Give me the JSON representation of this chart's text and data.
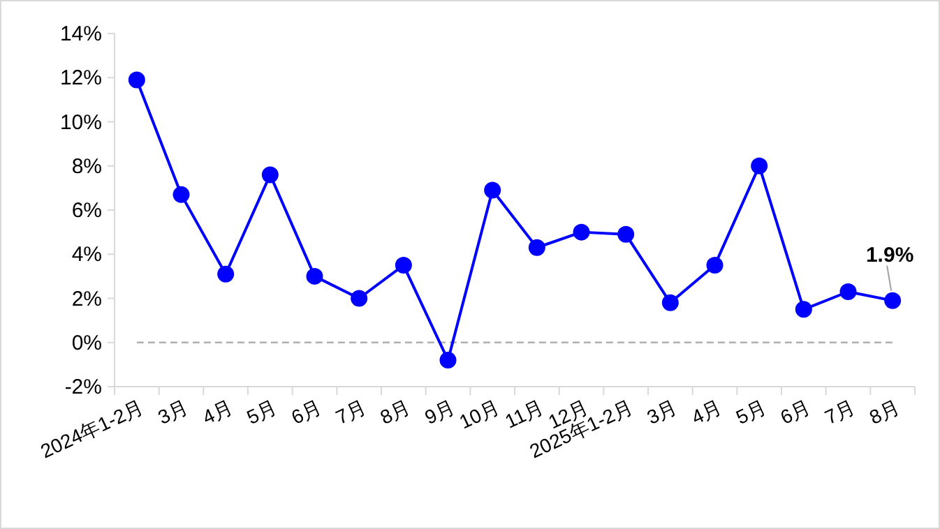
{
  "chart_data": {
    "type": "line",
    "categories": [
      "2024年1-2月",
      "3月",
      "4月",
      "5月",
      "6月",
      "7月",
      "8月",
      "9月",
      "10月",
      "11月",
      "12月",
      "2025年1-2月",
      "3月",
      "4月",
      "5月",
      "6月",
      "7月",
      "8月"
    ],
    "series": [
      {
        "color": "#0000ff",
        "values": [
          11.9,
          6.7,
          3.1,
          7.6,
          3.0,
          2.0,
          3.5,
          -0.8,
          6.9,
          4.3,
          5.0,
          4.9,
          1.8,
          3.5,
          8.0,
          1.5,
          2.3,
          1.9
        ],
        "value_labels": [
          null,
          null,
          null,
          null,
          null,
          null,
          null,
          null,
          null,
          null,
          null,
          null,
          null,
          null,
          null,
          null,
          null,
          "1.9%"
        ]
      }
    ],
    "ylim": [
      -2,
      14
    ],
    "yticks": [
      {
        "value": -2,
        "label": "-2%"
      },
      {
        "value": 0,
        "label": "0%"
      },
      {
        "value": 2,
        "label": "2%"
      },
      {
        "value": 4,
        "label": "4%"
      },
      {
        "value": 6,
        "label": "6%"
      },
      {
        "value": 8,
        "label": "8%"
      },
      {
        "value": 10,
        "label": "10%"
      },
      {
        "value": 12,
        "label": "12%"
      },
      {
        "value": 14,
        "label": "14%"
      }
    ],
    "ref_lines": [
      {
        "axis": "y",
        "value": 0,
        "color": "#b0b0b0",
        "line_style": "dashed"
      }
    ],
    "marker": "circle",
    "line_style": "solid",
    "grid": false
  }
}
